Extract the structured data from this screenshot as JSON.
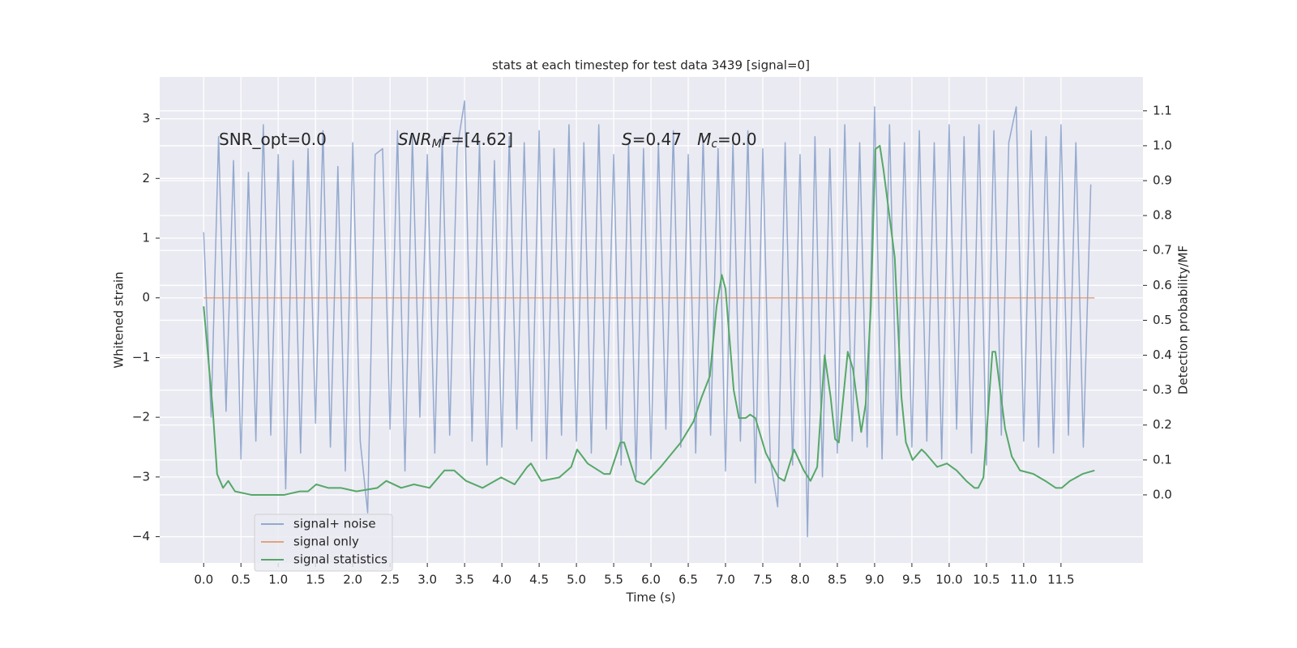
{
  "chart_data": {
    "type": "line",
    "title": "stats at each timestep for test data 3439 [signal=0]",
    "x_label": "Time (s)",
    "y_label": "Whitened strain",
    "y2_label": "Detection probability/MF",
    "grid": true,
    "legend": "lower left",
    "xlim": [
      -0.59,
      12.6
    ],
    "ylim": [
      -4.44,
      3.7
    ],
    "y2lim": [
      -0.195,
      1.197
    ],
    "xticks": [
      {
        "value": 0,
        "label": "0.0"
      },
      {
        "value": 0.5,
        "label": "0.5"
      },
      {
        "value": 1,
        "label": "1.0"
      },
      {
        "value": 1.5,
        "label": "1.5"
      },
      {
        "value": 2,
        "label": "2.0"
      },
      {
        "value": 2.5,
        "label": "2.5"
      },
      {
        "value": 3,
        "label": "3.0"
      },
      {
        "value": 3.5,
        "label": "3.5"
      },
      {
        "value": 4,
        "label": "4.0"
      },
      {
        "value": 4.5,
        "label": "4.5"
      },
      {
        "value": 5,
        "label": "5.0"
      },
      {
        "value": 5.5,
        "label": "5.5"
      },
      {
        "value": 6,
        "label": "6.0"
      },
      {
        "value": 6.5,
        "label": "6.5"
      },
      {
        "value": 7,
        "label": "7.0"
      },
      {
        "value": 7.5,
        "label": "7.5"
      },
      {
        "value": 8,
        "label": "8.0"
      },
      {
        "value": 8.5,
        "label": "8.5"
      },
      {
        "value": 9,
        "label": "9.0"
      },
      {
        "value": 9.5,
        "label": "9.5"
      },
      {
        "value": 10,
        "label": "10.0"
      },
      {
        "value": 10.5,
        "label": "10.5"
      },
      {
        "value": 11,
        "label": "11.0"
      },
      {
        "value": 11.5,
        "label": "11.5"
      }
    ],
    "yticks": [
      {
        "value": -4,
        "label": "−4"
      },
      {
        "value": -3,
        "label": "−3"
      },
      {
        "value": -2,
        "label": "−2"
      },
      {
        "value": -1,
        "label": "−1"
      },
      0,
      1,
      2,
      3
    ],
    "y2ticks": [
      {
        "value": 0,
        "label": "0.0"
      },
      {
        "value": 0.1,
        "label": "0.1"
      },
      {
        "value": 0.2,
        "label": "0.2"
      },
      {
        "value": 0.3,
        "label": "0.3"
      },
      {
        "value": 0.4,
        "label": "0.4"
      },
      {
        "value": 0.5,
        "label": "0.5"
      },
      {
        "value": 0.6,
        "label": "0.6"
      },
      {
        "value": 0.7,
        "label": "0.7"
      },
      {
        "value": 0.8,
        "label": "0.8"
      },
      {
        "value": 0.9,
        "label": "0.9"
      },
      {
        "value": 1,
        "label": "1.0"
      },
      {
        "value": 1.1,
        "label": "1.1"
      }
    ],
    "annotations": [
      {
        "parts": [
          {
            "text": "SNR_opt=0.0"
          }
        ]
      },
      {
        "parts": [
          {
            "text": "SNR",
            "italic": true
          },
          {
            "text": "M",
            "italic": true,
            "sub": true
          },
          {
            "text": "F",
            "italic": true
          },
          {
            "text": "=[4.62]"
          }
        ]
      },
      {
        "parts": [
          {
            "text": "S",
            "italic": true
          },
          {
            "text": "=0.47   "
          },
          {
            "text": "M",
            "italic": true
          },
          {
            "text": "c",
            "italic": true,
            "sub": true
          },
          {
            "text": "=0.0"
          }
        ]
      }
    ],
    "series": [
      {
        "name": "signal+ noise",
        "color": "#4c72b0",
        "opacity": 0.55,
        "x": [
          0.0,
          0.1,
          0.2,
          0.3,
          0.4,
          0.5,
          0.6,
          0.7,
          0.8,
          0.9,
          1.0,
          1.1,
          1.2,
          1.3,
          1.4,
          1.5,
          1.6,
          1.7,
          1.8,
          1.9,
          2.0,
          2.1,
          2.2,
          2.3,
          2.4,
          2.5,
          2.6,
          2.7,
          2.8,
          2.9,
          3.0,
          3.1,
          3.2,
          3.3,
          3.4,
          3.5,
          3.6,
          3.7,
          3.8,
          3.9,
          4.0,
          4.1,
          4.2,
          4.3,
          4.4,
          4.5,
          4.6,
          4.7,
          4.8,
          4.9,
          5.0,
          5.1,
          5.2,
          5.3,
          5.4,
          5.5,
          5.6,
          5.7,
          5.8,
          5.9,
          6.0,
          6.1,
          6.2,
          6.3,
          6.4,
          6.5,
          6.6,
          6.7,
          6.8,
          6.9,
          7.0,
          7.1,
          7.2,
          7.3,
          7.4,
          7.5,
          7.6,
          7.7,
          7.8,
          7.9,
          8.0,
          8.1,
          8.2,
          8.3,
          8.4,
          8.5,
          8.6,
          8.7,
          8.8,
          8.9,
          9.0,
          9.1,
          9.2,
          9.3,
          9.4,
          9.5,
          9.6,
          9.7,
          9.8,
          9.9,
          10.0,
          10.1,
          10.2,
          10.3,
          10.4,
          10.5,
          10.6,
          10.7,
          10.8,
          10.9,
          11.0,
          11.1,
          11.2,
          11.3,
          11.4,
          11.5,
          11.6,
          11.7,
          11.8,
          11.9
        ],
        "values": [
          1.1,
          -2.0,
          2.7,
          -1.9,
          2.3,
          -2.7,
          2.1,
          -2.4,
          2.9,
          -2.3,
          2.4,
          -3.2,
          2.3,
          -2.6,
          2.5,
          -2.1,
          2.8,
          -2.5,
          2.2,
          -2.9,
          2.6,
          -2.4,
          -3.6,
          2.4,
          2.5,
          -2.2,
          2.8,
          -2.9,
          2.7,
          -2.0,
          2.4,
          -2.6,
          2.7,
          -2.3,
          2.5,
          3.3,
          -2.4,
          2.6,
          -2.8,
          2.3,
          -2.5,
          2.7,
          -2.2,
          2.6,
          -2.4,
          2.8,
          -2.7,
          2.5,
          -2.3,
          2.9,
          -2.4,
          2.6,
          -2.6,
          2.9,
          -2.2,
          2.4,
          -2.8,
          2.6,
          -3.0,
          2.5,
          -2.7,
          2.6,
          -2.2,
          2.8,
          -2.5,
          2.4,
          -2.6,
          2.7,
          -2.3,
          2.5,
          -2.9,
          2.6,
          -2.4,
          2.8,
          -3.1,
          2.5,
          -2.7,
          -3.5,
          2.6,
          -2.8,
          2.4,
          -4.0,
          2.7,
          -3.0,
          2.5,
          -2.6,
          2.9,
          -2.4,
          2.6,
          -2.5,
          3.2,
          -2.7,
          2.9,
          -2.3,
          2.6,
          -2.5,
          2.8,
          -2.4,
          2.6,
          -2.7,
          2.9,
          -2.2,
          2.7,
          -2.6,
          2.9,
          -2.8,
          2.8,
          -2.3,
          2.6,
          3.2,
          -2.4,
          2.8,
          -2.5,
          2.7,
          -2.6,
          2.9,
          -2.3,
          2.6,
          -2.5,
          1.9
        ]
      },
      {
        "name": "signal only",
        "color": "#dd8452",
        "opacity": 0.7,
        "x": [
          0.0,
          11.95
        ],
        "values": [
          0,
          0
        ]
      },
      {
        "name": "signal statistics",
        "color": "#55a868",
        "opacity": 1,
        "axis": "y2",
        "x": [
          0.0,
          0.12,
          0.18,
          0.26,
          0.33,
          0.42,
          0.64,
          1.08,
          1.29,
          1.4,
          1.51,
          1.67,
          1.84,
          2.05,
          2.33,
          2.45,
          2.65,
          2.82,
          3.03,
          3.23,
          3.36,
          3.52,
          3.74,
          3.99,
          4.17,
          4.34,
          4.39,
          4.53,
          4.77,
          4.93,
          5.01,
          5.15,
          5.37,
          5.45,
          5.59,
          5.64,
          5.8,
          5.91,
          6.13,
          6.4,
          6.57,
          6.68,
          6.79,
          6.88,
          6.95,
          7.0,
          7.11,
          7.18,
          7.27,
          7.33,
          7.4,
          7.54,
          7.71,
          7.79,
          7.92,
          8.05,
          8.14,
          8.23,
          8.33,
          8.41,
          8.47,
          8.52,
          8.64,
          8.71,
          8.82,
          8.88,
          8.95,
          9.01,
          9.07,
          9.12,
          9.27,
          9.36,
          9.42,
          9.51,
          9.63,
          9.68,
          9.84,
          9.97,
          10.1,
          10.23,
          10.34,
          10.39,
          10.46,
          10.58,
          10.62,
          10.75,
          10.84,
          10.95,
          11.13,
          11.29,
          11.43,
          11.51,
          11.62,
          11.79,
          11.95
        ],
        "values": [
          0.54,
          0.25,
          0.06,
          0.02,
          0.04,
          0.01,
          0.0,
          0.0,
          0.01,
          0.01,
          0.03,
          0.02,
          0.02,
          0.01,
          0.02,
          0.04,
          0.02,
          0.03,
          0.02,
          0.07,
          0.07,
          0.04,
          0.02,
          0.05,
          0.03,
          0.08,
          0.09,
          0.04,
          0.05,
          0.08,
          0.13,
          0.09,
          0.06,
          0.06,
          0.15,
          0.15,
          0.04,
          0.03,
          0.08,
          0.15,
          0.21,
          0.28,
          0.34,
          0.54,
          0.63,
          0.59,
          0.3,
          0.22,
          0.22,
          0.23,
          0.22,
          0.12,
          0.05,
          0.04,
          0.13,
          0.07,
          0.04,
          0.08,
          0.4,
          0.28,
          0.16,
          0.15,
          0.41,
          0.36,
          0.18,
          0.26,
          0.54,
          0.99,
          1.0,
          0.93,
          0.68,
          0.28,
          0.15,
          0.1,
          0.13,
          0.12,
          0.08,
          0.09,
          0.07,
          0.04,
          0.02,
          0.02,
          0.05,
          0.41,
          0.41,
          0.19,
          0.11,
          0.07,
          0.06,
          0.04,
          0.02,
          0.02,
          0.04,
          0.06,
          0.07
        ]
      }
    ]
  }
}
